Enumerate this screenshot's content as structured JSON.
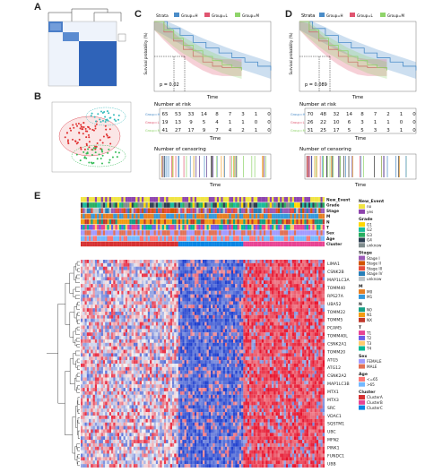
{
  "panels": {
    "A": "A",
    "B": "B",
    "C": "C",
    "D": "D",
    "E": "E"
  },
  "colors": {
    "g1": "#4a8cc8",
    "g2": "#e05570",
    "g3": "#8fd46a",
    "hm_low": "#1e3fcf",
    "hm_mid": "#f2f2f2",
    "hm_high": "#e8102a",
    "cluster_blue": "#3d6fc4"
  },
  "km_c": {
    "strata_label": "Strata",
    "groups": [
      "Group=H",
      "Group=L",
      "Group=M"
    ],
    "ylabel": "Survival probability (%)",
    "xlabel": "Time",
    "pvalue": "p = 0.02",
    "risk_title": "Number at risk",
    "risk_rows": [
      {
        "values": [
          "65",
          "53",
          "33",
          "14",
          "8",
          "7",
          "3",
          "1",
          "0"
        ]
      },
      {
        "values": [
          "19",
          "13",
          "9",
          "5",
          "4",
          "1",
          "1",
          "0",
          "0"
        ]
      },
      {
        "values": [
          "41",
          "27",
          "17",
          "9",
          "7",
          "4",
          "2",
          "1",
          "0"
        ]
      }
    ],
    "censor_title": "Number of censoring"
  },
  "km_d": {
    "strata_label": "Strata",
    "groups": [
      "Group=H",
      "Group=L",
      "Group=M"
    ],
    "ylabel": "Survival probability (%)",
    "xlabel": "Time",
    "pvalue": "p = 0.089",
    "risk_title": "Number at risk",
    "risk_rows": [
      {
        "values": [
          "70",
          "48",
          "32",
          "14",
          "8",
          "7",
          "2",
          "1",
          "0"
        ]
      },
      {
        "values": [
          "26",
          "22",
          "10",
          "6",
          "3",
          "1",
          "1",
          "0",
          "0"
        ]
      },
      {
        "values": [
          "31",
          "25",
          "17",
          "5",
          "5",
          "3",
          "3",
          "1",
          "0"
        ]
      }
    ],
    "censor_title": "Number of censoring"
  },
  "heatmap": {
    "annotation_rows": [
      "New_Event",
      "Grade",
      "Stage",
      "M",
      "N",
      "T",
      "Sex",
      "Age",
      "Cluster"
    ],
    "genes": [
      "LIMA1",
      "CSNK2B",
      "MAP1LC3A",
      "TOMM40",
      "RPS27A",
      "UBA52",
      "TOMM22",
      "TOMM5",
      "PCAM5",
      "TOMM40L",
      "CSNK2A1",
      "TOMM20",
      "ATG5",
      "ATG12",
      "CSNK2A2",
      "MAP1LC3B",
      "MTX1",
      "MTX3",
      "SRC",
      "VDAC1",
      "SQSTM1",
      "UBC",
      "MFN2",
      "PINK1",
      "FUNDC1",
      "UBB"
    ]
  },
  "legend": {
    "groups": [
      {
        "title": "New_Event",
        "items": [
          {
            "label": "no",
            "color": "#f0e442"
          },
          {
            "label": "yes",
            "color": "#8e44ad"
          }
        ]
      },
      {
        "title": "Grade",
        "items": [
          {
            "label": "G1",
            "color": "#ffd700"
          },
          {
            "label": "G2",
            "color": "#1abc9c"
          },
          {
            "label": "G3",
            "color": "#27ae60"
          },
          {
            "label": "G4",
            "color": "#2c3e50"
          },
          {
            "label": "unknow",
            "color": "#7f8c8d"
          }
        ]
      },
      {
        "title": "Stage",
        "items": [
          {
            "label": "Stage I",
            "color": "#9b59b6"
          },
          {
            "label": "Stage II",
            "color": "#d35400"
          },
          {
            "label": "Stage III",
            "color": "#e74c3c"
          },
          {
            "label": "Stage IV",
            "color": "#2980b9"
          },
          {
            "label": "unknow",
            "color": "#bdc3c7"
          }
        ]
      },
      {
        "title": "M",
        "items": [
          {
            "label": "M0",
            "color": "#e67e22"
          },
          {
            "label": "M1",
            "color": "#3498db"
          }
        ]
      },
      {
        "title": "N",
        "items": [
          {
            "label": "N0",
            "color": "#16a085"
          },
          {
            "label": "N1",
            "color": "#f39c12"
          },
          {
            "label": "NX",
            "color": "#c0392b"
          }
        ]
      },
      {
        "title": "T",
        "items": [
          {
            "label": "T1",
            "color": "#e84393"
          },
          {
            "label": "T2",
            "color": "#6c5ce7"
          },
          {
            "label": "T3",
            "color": "#fdcb6e"
          },
          {
            "label": "T4",
            "color": "#00b894"
          }
        ]
      },
      {
        "title": "Sex",
        "items": [
          {
            "label": "FEMALE",
            "color": "#a29bfe"
          },
          {
            "label": "MALE",
            "color": "#e17055"
          }
        ]
      },
      {
        "title": "Age",
        "items": [
          {
            "label": "<=65",
            "color": "#ff7675"
          },
          {
            "label": ">65",
            "color": "#74b9ff"
          }
        ]
      },
      {
        "title": "Cluster",
        "items": [
          {
            "label": "ClusterA",
            "color": "#d63031"
          },
          {
            "label": "ClusterB",
            "color": "#e84393"
          },
          {
            "label": "ClusterC",
            "color": "#0984e3"
          }
        ]
      }
    ]
  }
}
